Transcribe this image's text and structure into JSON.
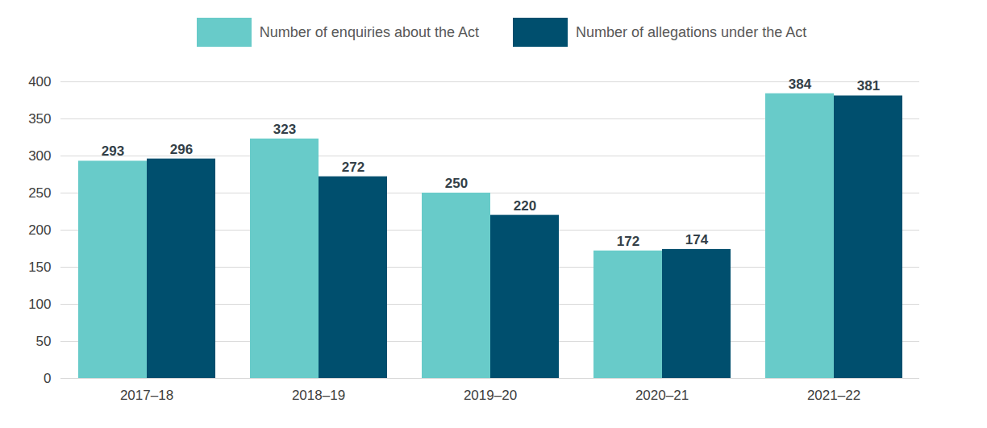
{
  "chart_data": {
    "type": "bar",
    "categories": [
      "2017–18",
      "2018–19",
      "2019–20",
      "2020–21",
      "2021–22"
    ],
    "series": [
      {
        "name": "Number of enquiries about the Act",
        "color": "#68cbc9",
        "values": [
          293,
          323,
          250,
          172,
          384
        ]
      },
      {
        "name": "Number of allegations under the Act",
        "color": "#004f6e",
        "values": [
          296,
          272,
          220,
          174,
          381
        ]
      }
    ],
    "ylim": [
      0,
      400
    ],
    "yticks": [
      0,
      50,
      100,
      150,
      200,
      250,
      300,
      350,
      400
    ],
    "grid": true,
    "data_labels": true,
    "legend": "top"
  }
}
